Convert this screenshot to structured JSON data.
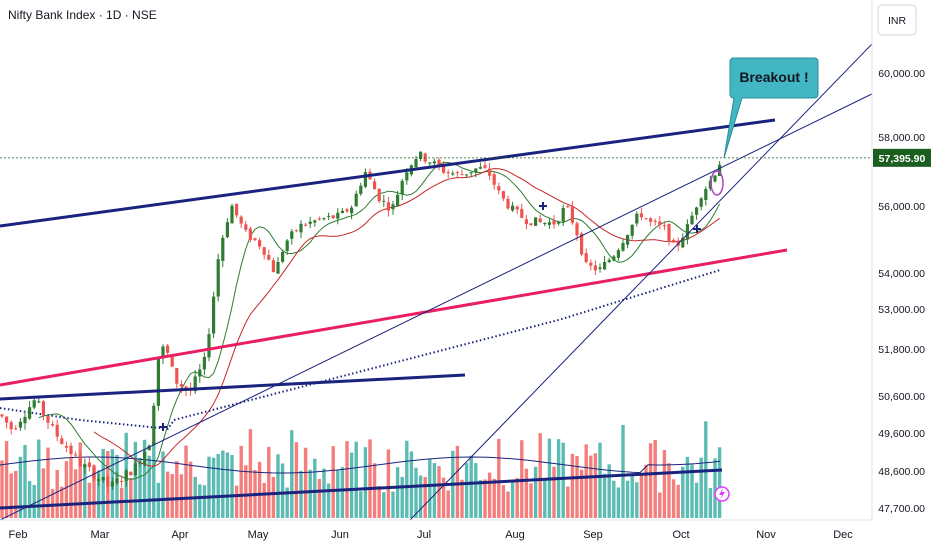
{
  "chart_data": {
    "type": "candlestick",
    "title": "Nifty Bank Index · 1D · NSE",
    "currency": "INR",
    "y_ticks": [
      60000,
      58000,
      56000,
      54000,
      53000,
      51800,
      50600,
      49600,
      48600,
      47700
    ],
    "y_tick_labels": [
      "60,000.00",
      "58,000.00",
      "56,000.00",
      "54,000.00",
      "53,000.00",
      "51,800.00",
      "50,600.00",
      "49,600.00",
      "48,600.00",
      "47,700.00"
    ],
    "x_ticks": [
      "Feb",
      "Mar",
      "Apr",
      "May",
      "Jun",
      "Jul",
      "Aug",
      "Sep",
      "Oct",
      "Nov",
      "Dec"
    ],
    "last_price": 57395.9,
    "last_price_label": "57,395.90",
    "annotation": "Breakout !",
    "grid": false,
    "colors": {
      "up": "#26a69a",
      "down": "#ef5350",
      "channel": "#1a237e",
      "support": "#e91e63",
      "ma_fast": "#2e7d32",
      "ma_slow": "#c62828",
      "price_label": "#1b5e20",
      "callout_fill": "#43b6c4"
    }
  }
}
